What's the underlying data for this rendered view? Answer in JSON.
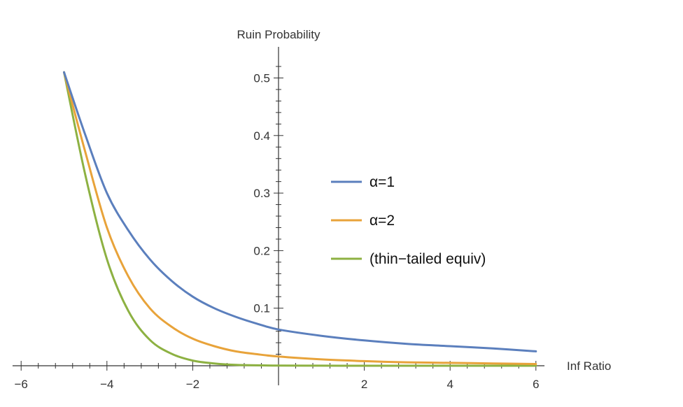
{
  "chart_data": {
    "type": "line",
    "xlabel": "Inf Ratio",
    "ylabel": "Ruin Probability",
    "xlim": [
      -6.2,
      6.2
    ],
    "ylim": [
      0,
      0.52
    ],
    "grid": false,
    "legend_position": "right",
    "x_ticks": [
      {
        "value": -6,
        "label": "−6"
      },
      {
        "value": -4,
        "label": "−4"
      },
      {
        "value": -2,
        "label": "−2"
      },
      {
        "value": 2,
        "label": "2"
      },
      {
        "value": 4,
        "label": "4"
      },
      {
        "value": 6,
        "label": "6"
      }
    ],
    "y_ticks": [
      {
        "value": 0.1,
        "label": "0.1"
      },
      {
        "value": 0.2,
        "label": "0.2"
      },
      {
        "value": 0.3,
        "label": "0.3"
      },
      {
        "value": 0.4,
        "label": "0.4"
      },
      {
        "value": 0.5,
        "label": "0.5"
      }
    ],
    "x": [
      -5,
      -4.5,
      -4,
      -3.5,
      -3,
      -2.5,
      -2,
      -1.5,
      -1,
      -0.5,
      0,
      1,
      2,
      3,
      4,
      5,
      6
    ],
    "series": [
      {
        "name": "α=1",
        "color": "#5b7fbd",
        "values": [
          0.51,
          0.4,
          0.3,
          0.235,
          0.185,
          0.148,
          0.12,
          0.1,
          0.085,
          0.073,
          0.063,
          0.052,
          0.044,
          0.038,
          0.034,
          0.03,
          0.025
        ]
      },
      {
        "name": "α=2",
        "color": "#e8a33a",
        "values": [
          0.51,
          0.37,
          0.24,
          0.155,
          0.1,
          0.068,
          0.047,
          0.034,
          0.025,
          0.02,
          0.016,
          0.011,
          0.008,
          0.006,
          0.005,
          0.004,
          0.003
        ]
      },
      {
        "name": "(thin−tailed equiv)",
        "color": "#8db142",
        "values": [
          0.51,
          0.33,
          0.185,
          0.095,
          0.045,
          0.021,
          0.009,
          0.004,
          0.0015,
          0.0007,
          0.0003,
          0.0001,
          0,
          0,
          0,
          0,
          0
        ]
      }
    ]
  }
}
